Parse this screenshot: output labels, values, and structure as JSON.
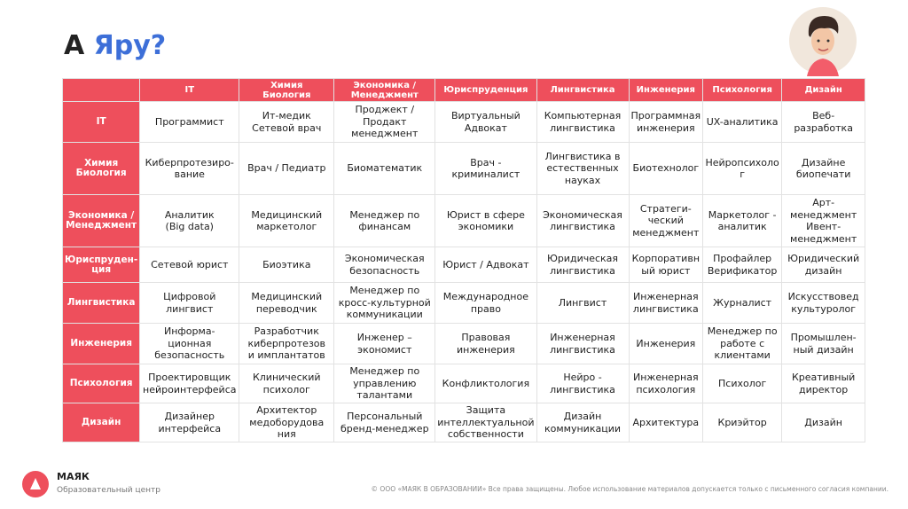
{
  "header": {
    "title": [
      "А",
      "Яру?"
    ]
  },
  "table": {
    "columns": [
      "IT",
      "Химия\nБиология",
      "Экономика /\nМенеджмент",
      "Юриспруденция",
      "Лингвистика",
      "Инженерия",
      "Психология",
      "Дизайн"
    ],
    "rows": [
      {
        "header": "IT",
        "cells": [
          "Программист",
          "Ит-медик\nСетевой врач",
          "Проджект /\nПродакт\nменеджмент",
          "Виртуальный\nАдвокат",
          "Компьютерная\nлингвистика",
          "Программная\nинженерия",
          "UX-аналитика",
          "Веб-\nразработка"
        ]
      },
      {
        "header": "Химия\nБиология",
        "cells": [
          "Киберпротезиро-\nвание",
          "Врач / Педиатр",
          "Биоматематик",
          "Врач -\nкриминалист",
          "Лингвистика в\nестественных\nнауках",
          "Биотехнолог",
          "Нейропсихоло\nг",
          "Дизайне\nбиопечати"
        ]
      },
      {
        "header": "Экономика /\nМенеджмент",
        "cells": [
          "Аналитик\n(Big data)",
          "Медицинский\nмаркетолог",
          "Менеджер по\nфинансам",
          "Юрист в сфере\nэкономики",
          "Экономическая\nлингвистика",
          "Стратеги-\nческий\nменеджмент",
          "Маркетолог -\nаналитик",
          "Арт-\nменеджмент\nИвент-\nменеджмент"
        ]
      },
      {
        "header": "Юриспруден-\nция",
        "cells": [
          "Сетевой юрист",
          "Биоэтика",
          "Экономическая\nбезопасность",
          "Юрист / Адвокат",
          "Юридическая\nлингвистика",
          "Корпоративн\nый юрист",
          "Профайлер\nВерификатор",
          "Юридический\nдизайн"
        ]
      },
      {
        "header": "Лингвистика",
        "cells": [
          "Цифровой лингвист",
          "Медицинский\nпереводчик",
          "Менеджер по\nкросс-культурной\nкоммуникации",
          "Международное\nправо",
          "Лингвист",
          "Инженерная\nлингвистика",
          "Журналист",
          "Искусствовед\nкультуролог"
        ]
      },
      {
        "header": "Инженерия",
        "cells": [
          "Информа-\nционная\nбезопасность",
          "Разработчик\nкиберпротезов\nи имплантатов",
          "Инженер –\nэкономист",
          "Правовая\nинженерия",
          "Инженерная\nлингвистика",
          "Инженерия",
          "Менеджер по\nработе с\nклиентами",
          "Промышлен-\nный дизайн"
        ]
      },
      {
        "header": "Психология",
        "cells": [
          "Проектировщик\nнейроинтерфейса",
          "Клинический\nпсихолог",
          "Менеджер по\nуправлению\nталантами",
          "Конфликтология",
          "Нейро -\nлингвистика",
          "Инженерная\nпсихология",
          "Психолог",
          "Креативный\nдиректор"
        ]
      },
      {
        "header": "Дизайн",
        "cells": [
          "Дизайнер\nинтерфейса",
          "Архитектор\nмедоборудова\nния",
          "Персональный\nбренд-менеджер",
          "Защита\nинтеллектуальной\nсобственности",
          "Дизайн\nкоммуникации",
          "Архитектура",
          "Криэйтор",
          "Дизайн"
        ]
      }
    ]
  },
  "footer": {
    "brand": "МАЯК",
    "subtitle": "Образовательный центр",
    "copyright": "© ООО «МАЯК В ОБРАЗОВАНИИ» Все права защищены. Любое использование материалов допускается только с письменного согласия компании."
  }
}
